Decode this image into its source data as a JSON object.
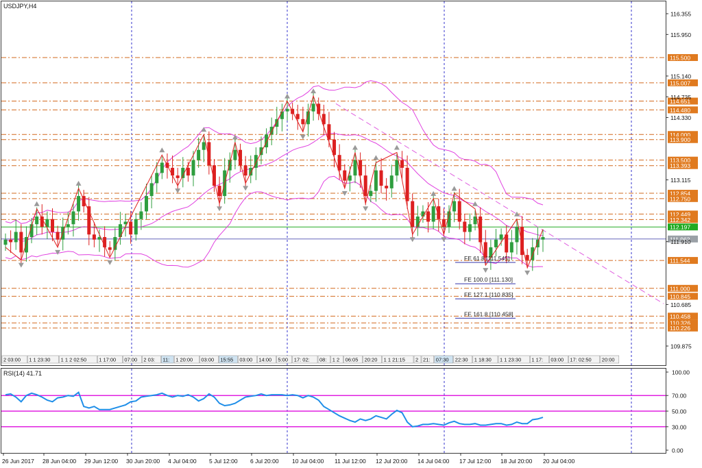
{
  "window": {
    "title": "USDJPY,H4"
  },
  "colors": {
    "frame": "#3a3a3a",
    "vgrid": "#3333cc",
    "level": "#d2691e",
    "level_tag_bg": "#e07a1f",
    "band": "#e040e0",
    "candle_up": "#2e9e3e",
    "candle_down": "#dc2020",
    "zigzag": "#e02020",
    "trend": "#e060e0",
    "green_line": "#22aa22",
    "blue_line": "#6666bb",
    "rsi_line": "#1e8ee8",
    "rsi_level": "#e020e0",
    "arrow": "#9a9a9a"
  },
  "price_axis": {
    "ticks": [
      "116.355",
      "115.950",
      "115.140",
      "114.735",
      "114.330",
      "113.115",
      "111.910",
      "110.685",
      "109.875"
    ],
    "tagged_levels": [
      "115.500",
      "115.007",
      "114.651",
      "114.480",
      "114.000",
      "113.900",
      "113.500",
      "113.393",
      "112.854",
      "112.750",
      "112.449",
      "112.342",
      "112.197",
      "111.962",
      "111.544",
      "111.000",
      "110.845",
      "110.458",
      "110.326",
      "110.226"
    ]
  },
  "fe_labels": [
    {
      "text": "FE 61.8 [111.545]"
    },
    {
      "text": "FE 100.0 [111.130]"
    },
    {
      "text": "FE 127.1 [110.835]"
    },
    {
      "text": "FE 161.8 [110.458]"
    }
  ],
  "session_strip": [
    "2 03:00",
    "1 1 23:30",
    "1 1 2 02:50",
    "1 17:00",
    "07:00",
    "2 03:",
    "11:",
    "1 20:00",
    "03:00",
    "15:55",
    "03:00",
    "14:00",
    "5:00",
    "17: 02:",
    "08:",
    "1 2",
    "06:05",
    "20:20",
    "1 1 21:15",
    "2",
    "21:",
    "07:30",
    "22:30",
    "1 18:30",
    "1 1 23:30",
    "1 17:",
    "03:00",
    "17: 02:50",
    "20:00"
  ],
  "time_axis": [
    "26 Jun 2017",
    "28 Jun 04:00",
    "29 Jun 12:00",
    "30 Jun 20:00",
    "4 Jul 04:00",
    "5 Jul 12:00",
    "6 Jul 20:00",
    "10 Jul 04:00",
    "11 Jul 12:00",
    "12 Jul 20:00",
    "14 Jul 04:00",
    "17 Jul 12:00",
    "18 Jul 20:00",
    "20 Jul 04:00"
  ],
  "rsi": {
    "label": "RSI(14) 41.71",
    "ticks": [
      "100.00",
      "70.00",
      "50.00",
      "30.00",
      "0.00"
    ]
  },
  "chart_data": [
    {
      "type": "candlestick",
      "title": "USDJPY,H4",
      "ylim": [
        109.6,
        116.5
      ],
      "x": [
        "26 Jun 2017",
        "28 Jun 04:00",
        "29 Jun 12:00",
        "30 Jun 20:00",
        "4 Jul 04:00",
        "5 Jul 12:00",
        "6 Jul 20:00",
        "10 Jul 04:00",
        "11 Jul 12:00",
        "12 Jul 20:00",
        "14 Jul 04:00",
        "17 Jul 12:00",
        "18 Jul 20:00",
        "20 Jul 04:00"
      ],
      "close_series": [
        111.95,
        111.9,
        112.1,
        111.7,
        112.0,
        112.25,
        112.4,
        112.2,
        112.35,
        112.1,
        111.95,
        112.2,
        112.25,
        112.5,
        112.8,
        112.6,
        112.05,
        111.95,
        112.0,
        111.8,
        111.75,
        112.0,
        112.25,
        112.3,
        112.05,
        112.35,
        112.5,
        112.8,
        113.05,
        113.25,
        113.45,
        113.35,
        113.2,
        113.15,
        113.35,
        113.2,
        113.5,
        113.7,
        113.85,
        113.4,
        113.0,
        112.8,
        113.3,
        113.5,
        113.7,
        113.4,
        113.2,
        113.35,
        113.6,
        113.75,
        114.0,
        114.15,
        114.3,
        114.45,
        114.5,
        114.4,
        114.3,
        114.2,
        114.45,
        114.6,
        114.4,
        114.2,
        113.9,
        113.6,
        113.3,
        113.1,
        113.2,
        113.5,
        113.2,
        112.8,
        112.9,
        113.3,
        113.0,
        112.95,
        113.2,
        113.5,
        113.35,
        112.7,
        112.2,
        112.4,
        112.5,
        112.3,
        112.6,
        112.35,
        112.2,
        112.5,
        112.7,
        112.3,
        112.1,
        112.25,
        112.4,
        111.9,
        111.6,
        111.8,
        111.95,
        112.05,
        111.7,
        111.9,
        112.2,
        111.65,
        111.55,
        111.8,
        111.95,
        112.0
      ],
      "trend_line": {
        "from": [
          "11 Jul 00:00",
          114.6
        ],
        "to": [
          "20 Jul 12:00",
          110.7
        ]
      },
      "fibonacci_expansion": [
        {
          "label": "FE 61.8",
          "value": 111.545
        },
        {
          "label": "FE 100.0",
          "value": 111.13
        },
        {
          "label": "FE 127.1",
          "value": 110.835
        },
        {
          "label": "FE 161.8",
          "value": 110.458
        }
      ]
    },
    {
      "type": "line",
      "title": "RSI(14) 41.71",
      "ylim": [
        0,
        100
      ],
      "levels": [
        70,
        50,
        30
      ],
      "values": [
        71,
        72,
        68,
        62,
        70,
        73,
        71,
        68,
        64,
        62,
        67,
        68,
        70,
        69,
        74,
        56,
        54,
        56,
        52,
        52,
        52,
        54,
        56,
        58,
        62,
        63,
        68,
        69,
        70,
        71,
        73,
        70,
        68,
        70,
        69,
        71,
        68,
        63,
        66,
        72,
        68,
        60,
        57,
        58,
        60,
        64,
        68,
        69,
        70,
        72,
        70,
        71,
        71,
        71,
        70,
        71,
        70,
        67,
        70,
        68,
        64,
        56,
        52,
        48,
        44,
        41,
        38,
        36,
        40,
        38,
        40,
        44,
        42,
        40,
        46,
        51,
        48,
        36,
        30,
        31,
        33,
        33,
        34,
        33,
        32,
        35,
        37,
        34,
        33,
        33,
        34,
        32,
        32,
        33,
        34,
        34,
        32,
        33,
        36,
        34,
        34,
        39,
        40,
        42
      ]
    }
  ]
}
